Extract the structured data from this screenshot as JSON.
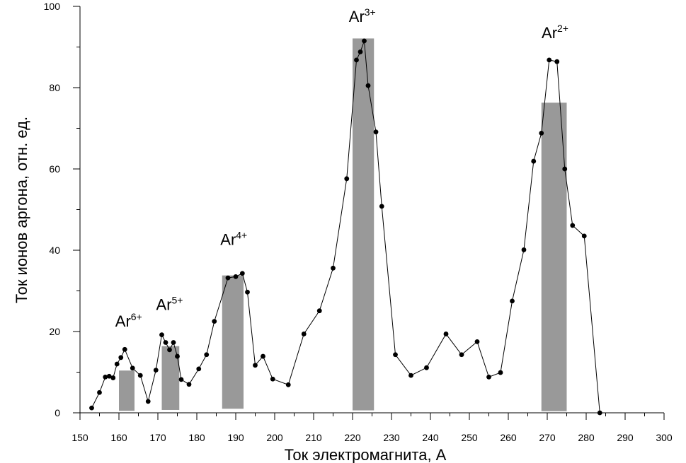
{
  "chart_data": {
    "type": "line",
    "title": "",
    "xlabel": "Ток электромагнита, А",
    "ylabel": "Ток ионов аргона, отн. ед.",
    "xlim": [
      150,
      300
    ],
    "ylim": [
      0,
      100
    ],
    "x_ticks": [
      "150",
      "160",
      "170",
      "180",
      "190",
      "200",
      "210",
      "220",
      "230",
      "240",
      "250",
      "260",
      "270",
      "280",
      "290",
      "300"
    ],
    "y_ticks": [
      "0",
      "20",
      "40",
      "60",
      "80",
      "100"
    ],
    "grid": false,
    "series": [
      {
        "marker": "circle",
        "color": "#000000",
        "points": [
          [
            153,
            1.2
          ],
          [
            155,
            5
          ],
          [
            156.5,
            8.8
          ],
          [
            157.5,
            9
          ],
          [
            158.5,
            8.6
          ],
          [
            159.5,
            12
          ],
          [
            160.5,
            13.6
          ],
          [
            161.5,
            15.6
          ],
          [
            163.5,
            11
          ],
          [
            165.5,
            9.2
          ],
          [
            167.5,
            2.8
          ],
          [
            169.5,
            10.5
          ],
          [
            171,
            19.2
          ],
          [
            172,
            17.3
          ],
          [
            173,
            15.5
          ],
          [
            174,
            17.3
          ],
          [
            175,
            13.9
          ],
          [
            176,
            8.2
          ],
          [
            178,
            7.0
          ],
          [
            180.5,
            10.8
          ],
          [
            182.5,
            14.3
          ],
          [
            184.5,
            22.5
          ],
          [
            188,
            33.2
          ],
          [
            190,
            33.5
          ],
          [
            191.7,
            34.3
          ],
          [
            193,
            29.7
          ],
          [
            195,
            11.7
          ],
          [
            197,
            13.9
          ],
          [
            199.5,
            8.3
          ],
          [
            203.5,
            6.9
          ],
          [
            207.5,
            19.4
          ],
          [
            211.5,
            25.1
          ],
          [
            215,
            35.6
          ],
          [
            218.5,
            57.6
          ],
          [
            221,
            86.8
          ],
          [
            222,
            88.8
          ],
          [
            223,
            91.5
          ],
          [
            224,
            80.5
          ],
          [
            226,
            69.1
          ],
          [
            227.5,
            50.8
          ],
          [
            231,
            14.3
          ],
          [
            235,
            9.2
          ],
          [
            239,
            11.1
          ],
          [
            244,
            19.4
          ],
          [
            248,
            14.3
          ],
          [
            252,
            17.5
          ],
          [
            255,
            8.8
          ],
          [
            258,
            9.9
          ],
          [
            261,
            27.5
          ],
          [
            264,
            40.1
          ],
          [
            266.5,
            61.9
          ],
          [
            268.5,
            68.8
          ],
          [
            270.5,
            86.8
          ],
          [
            272.5,
            86.4
          ],
          [
            274.5,
            60
          ],
          [
            276.5,
            46.1
          ],
          [
            279.5,
            43.5
          ],
          [
            283.5,
            0
          ]
        ]
      }
    ],
    "bars": [
      {
        "label": "Ar",
        "charge": "6+",
        "x0": 160,
        "x1": 164,
        "top": 10.4,
        "bottom": 0.5
      },
      {
        "label": "Ar",
        "charge": "5+",
        "x0": 171,
        "x1": 175.5,
        "top": 16.4,
        "bottom": 0.7
      },
      {
        "label": "Ar",
        "charge": "4+",
        "x0": 186.5,
        "x1": 192,
        "top": 33.8,
        "bottom": 1.0
      },
      {
        "label": "Ar",
        "charge": "3+",
        "x0": 220,
        "x1": 225.5,
        "top": 92.1,
        "bottom": 0.6
      },
      {
        "label": "Ar",
        "charge": "2+",
        "x0": 268.5,
        "x1": 275,
        "top": 76.3,
        "bottom": 0.4
      }
    ],
    "bar_color": "#999999",
    "annotations": [
      {
        "text": "Ar",
        "sup": "6+",
        "x": 162.5,
        "y": 21.2
      },
      {
        "text": "Ar",
        "sup": "5+",
        "x": 173,
        "y": 25.3
      },
      {
        "text": "Ar",
        "sup": "4+",
        "x": 189.5,
        "y": 41.3
      },
      {
        "text": "Ar",
        "sup": "3+",
        "x": 222.5,
        "y": 96.2
      },
      {
        "text": "Ar",
        "sup": "2+",
        "x": 272,
        "y": 92.2
      }
    ]
  }
}
